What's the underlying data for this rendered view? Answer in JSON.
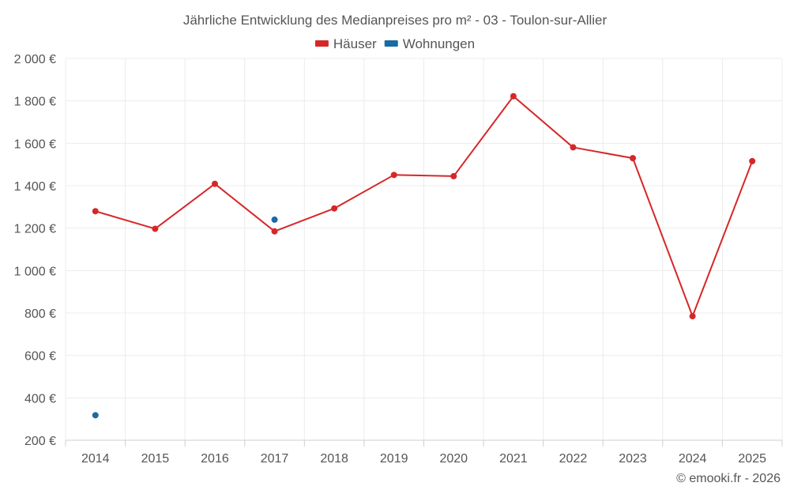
{
  "chart_data": {
    "type": "line",
    "title": "Jährliche Entwicklung des Medianpreises pro m² - 03 - Toulon-sur-Allier",
    "categories": [
      "2014",
      "2015",
      "2016",
      "2017",
      "2018",
      "2019",
      "2020",
      "2021",
      "2022",
      "2023",
      "2024",
      "2025"
    ],
    "ylim": [
      200,
      2000
    ],
    "yticks": [
      200,
      400,
      600,
      800,
      1000,
      1200,
      1400,
      1600,
      1800,
      2000
    ],
    "ytick_labels": [
      "200 €",
      "400 €",
      "600 €",
      "800 €",
      "1 000 €",
      "1 200 €",
      "1 400 €",
      "1 600 €",
      "1 800 €",
      "2 000 €"
    ],
    "grid": true,
    "legend_position": "top-center",
    "series": [
      {
        "name": "Häuser",
        "color": "#d62728",
        "values": [
          1280,
          1197,
          1409,
          1185,
          1293,
          1451,
          1445,
          1822,
          1581,
          1530,
          785,
          1516
        ]
      },
      {
        "name": "Wohnungen",
        "color": "#1a6aa3",
        "values": [
          318,
          null,
          null,
          1240,
          null,
          null,
          null,
          null,
          null,
          null,
          null,
          null
        ]
      }
    ],
    "credit": "© emooki.fr - 2026"
  }
}
